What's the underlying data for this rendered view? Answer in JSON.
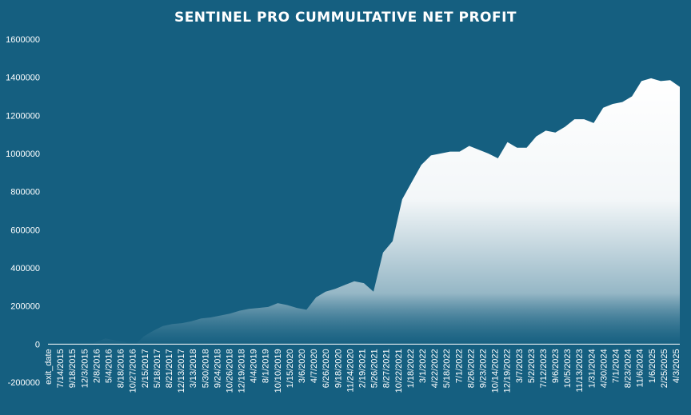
{
  "chart_data": {
    "type": "area",
    "title": "SENTINEL PRO CUMMULTATIVE NET PROFIT",
    "xlabel": "",
    "ylabel": "",
    "ylim": [
      -200000,
      1600000
    ],
    "y_ticks": [
      1600000,
      1400000,
      1200000,
      1000000,
      800000,
      600000,
      400000,
      200000,
      0,
      -200000
    ],
    "y_tick_labels": [
      "1600000",
      "1400000",
      "1200000",
      "1000000",
      "800000",
      "600000",
      "400000",
      "200000",
      "0",
      "-200000"
    ],
    "x_tick_labels": [
      "exit_date",
      "7/14/2015",
      "9/18/2015",
      "12/3/2015",
      "2/8/2016",
      "5/4/2016",
      "8/18/2016",
      "10/27/2016",
      "2/15/2017",
      "5/18/2017",
      "8/21/2017",
      "12/13/2017",
      "3/13/2018",
      "5/30/2018",
      "9/24/2018",
      "10/26/2018",
      "12/19/2018",
      "4/4/2019",
      "8/1/2019",
      "10/10/2019",
      "1/15/2020",
      "3/6/2020",
      "4/7/2020",
      "6/26/2020",
      "9/18/2020",
      "11/24/2020",
      "2/19/2021",
      "5/26/2021",
      "8/27/2021",
      "10/22/2021",
      "1/18/2022",
      "3/1/2022",
      "4/22/2022",
      "5/18/2022",
      "7/1/2022",
      "8/26/2022",
      "9/23/2022",
      "10/14/2022",
      "12/19/2022",
      "3/7/2023",
      "5/2/2023",
      "7/12/2023",
      "9/6/2023",
      "10/5/2023",
      "11/13/2023",
      "1/31/2024",
      "4/30/2024",
      "7/1/2024",
      "8/23/2024",
      "11/6/2024",
      "1/6/2025",
      "2/25/2025",
      "4/3/2025"
    ],
    "values": [
      -5000,
      -6000,
      -4000,
      -7000,
      -15000,
      10000,
      30000,
      20000,
      10000,
      -10000,
      40000,
      70000,
      95000,
      105000,
      110000,
      120000,
      135000,
      140000,
      150000,
      160000,
      175000,
      185000,
      190000,
      195000,
      215000,
      205000,
      190000,
      180000,
      245000,
      275000,
      290000,
      310000,
      330000,
      320000,
      275000,
      480000,
      540000,
      760000,
      850000,
      940000,
      990000,
      1000000,
      1010000,
      1010000,
      1040000,
      1020000,
      1000000,
      975000,
      1060000,
      1030000,
      1030000,
      1090000,
      1120000,
      1110000,
      1140000,
      1180000,
      1180000,
      1160000,
      1240000,
      1260000,
      1270000,
      1300000,
      1380000,
      1395000,
      1380000,
      1385000,
      1350000
    ],
    "grid": false,
    "legend": "none",
    "colors": {
      "background": "#155f80",
      "fill_top": "#ffffff",
      "fill_bottom": "#155f80",
      "text": "#ffffff"
    }
  }
}
